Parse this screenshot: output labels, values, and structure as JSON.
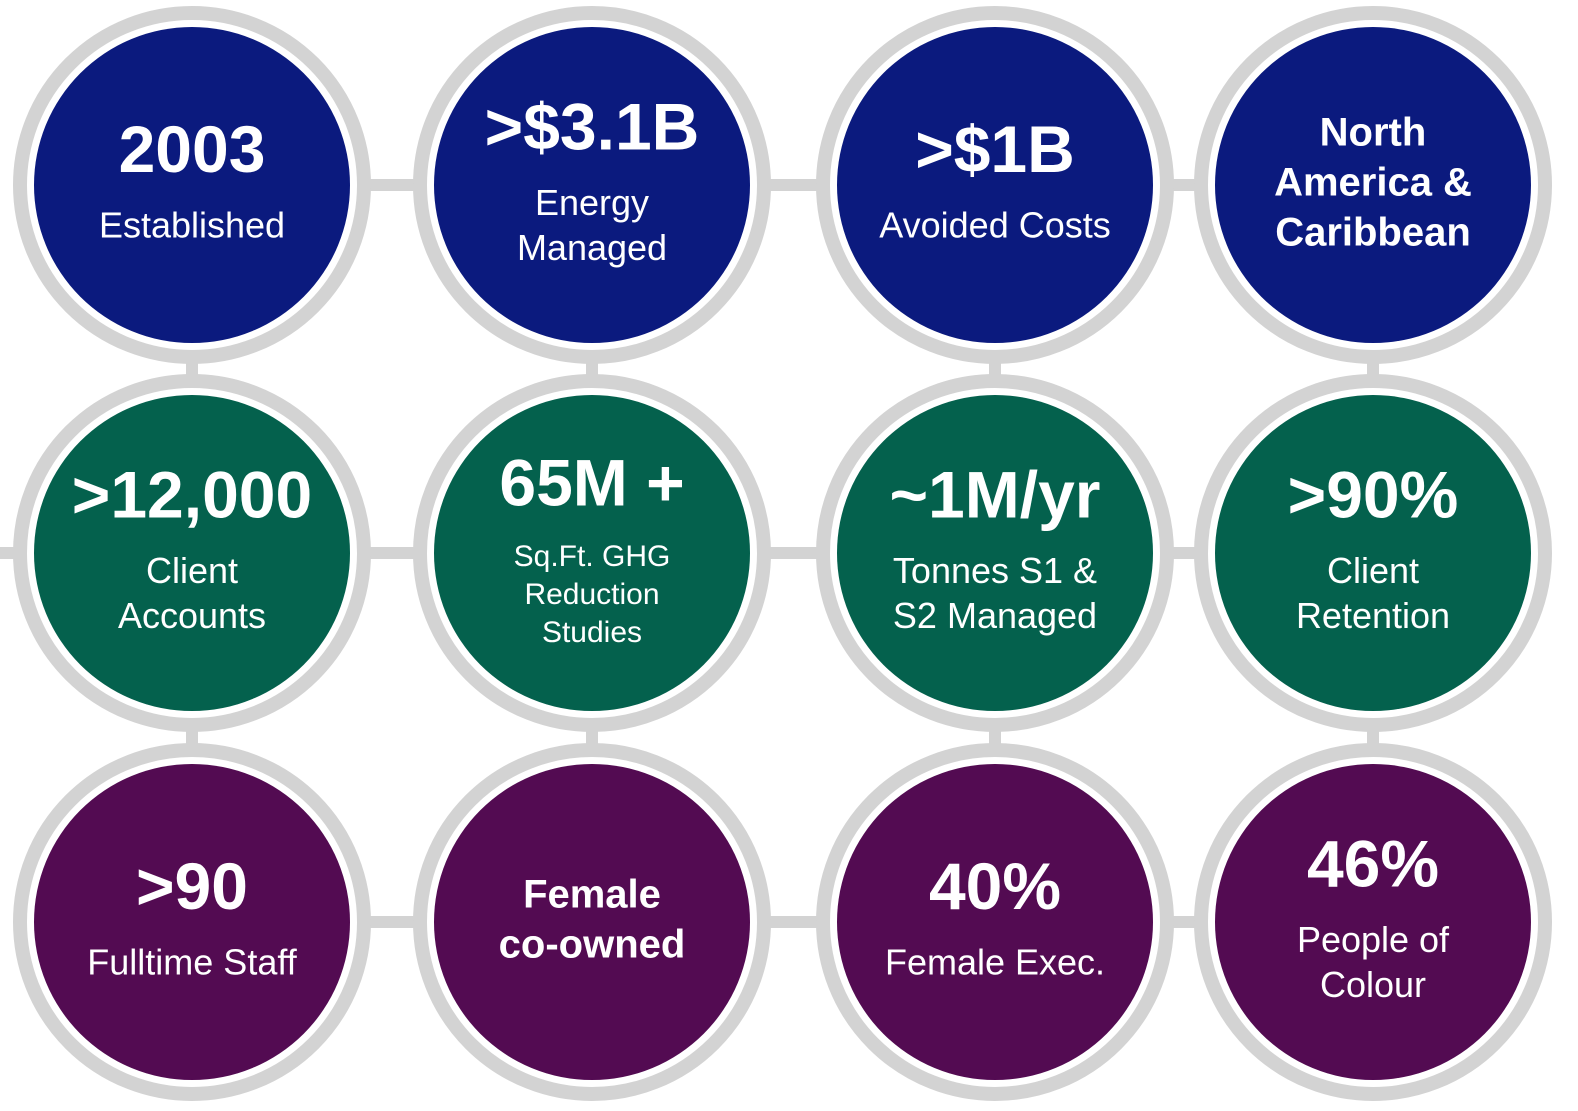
{
  "rows": [
    {
      "color": "#0b1a7e",
      "circles": [
        {
          "headline": [
            "2003"
          ],
          "caption": [
            "Established"
          ]
        },
        {
          "headline": [
            ">$3.1B"
          ],
          "caption": [
            "Energy",
            "Managed"
          ]
        },
        {
          "headline": [
            ">$1B"
          ],
          "caption": [
            "Avoided Costs"
          ]
        },
        {
          "headline": [
            "North",
            "America &",
            "Caribbean"
          ],
          "caption": []
        }
      ]
    },
    {
      "color": "#04614d",
      "circles": [
        {
          "headline": [
            ">12,000"
          ],
          "caption": [
            "Client",
            "Accounts"
          ]
        },
        {
          "headline": [
            "65M +"
          ],
          "caption": [
            "Sq.Ft. GHG",
            "Reduction",
            "Studies"
          ]
        },
        {
          "headline": [
            "~1M/yr"
          ],
          "caption": [
            "Tonnes S1 &",
            "S2 Managed"
          ]
        },
        {
          "headline": [
            ">90%"
          ],
          "caption": [
            "Client",
            "Retention"
          ]
        }
      ]
    },
    {
      "color": "#530b52",
      "circles": [
        {
          "headline": [
            ">90"
          ],
          "caption": [
            "Fulltime Staff"
          ]
        },
        {
          "headline": [
            "Female",
            "co-owned"
          ],
          "caption": []
        },
        {
          "headline": [
            "40%"
          ],
          "caption": [
            "Female Exec."
          ]
        },
        {
          "headline": [
            "46%"
          ],
          "caption": [
            "People of",
            "Colour"
          ]
        }
      ]
    }
  ]
}
